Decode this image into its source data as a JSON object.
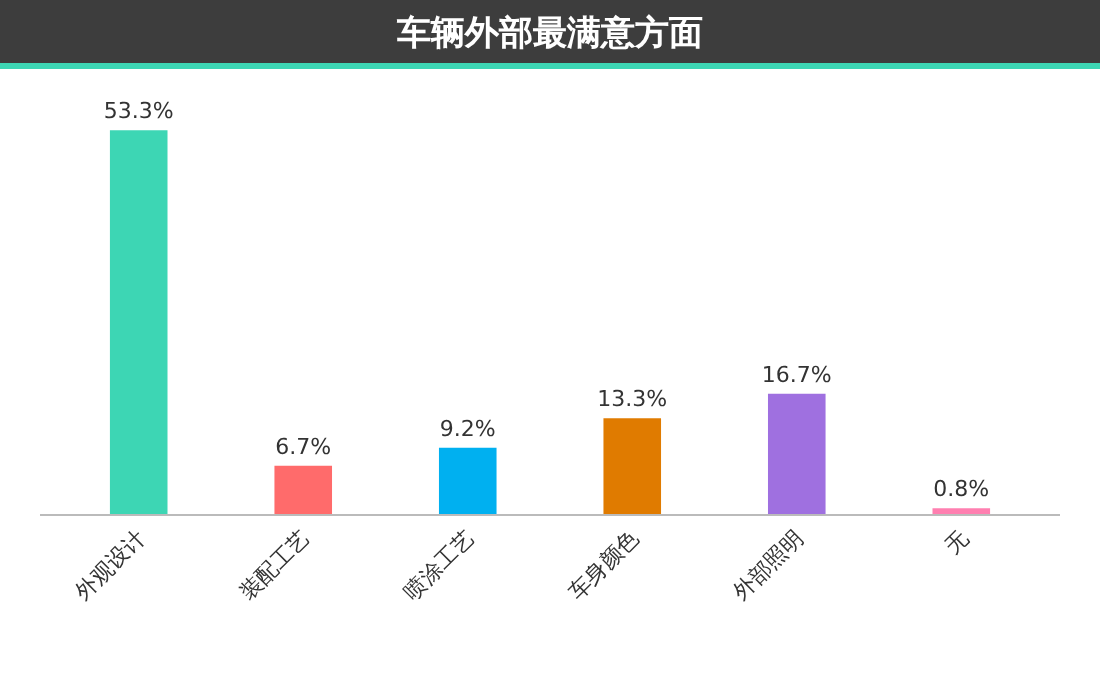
{
  "chart_data": {
    "type": "bar",
    "title": "车辆外部最满意方面",
    "categories": [
      "外观设计",
      "装配工艺",
      "喷涂工艺",
      "车身颜色",
      "外部照明",
      "无"
    ],
    "values": [
      53.3,
      6.7,
      9.2,
      13.3,
      16.7,
      0.8
    ],
    "value_labels": [
      "53.3%",
      "6.7%",
      "9.2%",
      "13.3%",
      "16.7%",
      "0.8%"
    ],
    "colors": [
      "#3dd6b4",
      "#ff6b6b",
      "#00b0f0",
      "#e07b00",
      "#9f70e0",
      "#ff7fb0"
    ],
    "legend": false
  }
}
